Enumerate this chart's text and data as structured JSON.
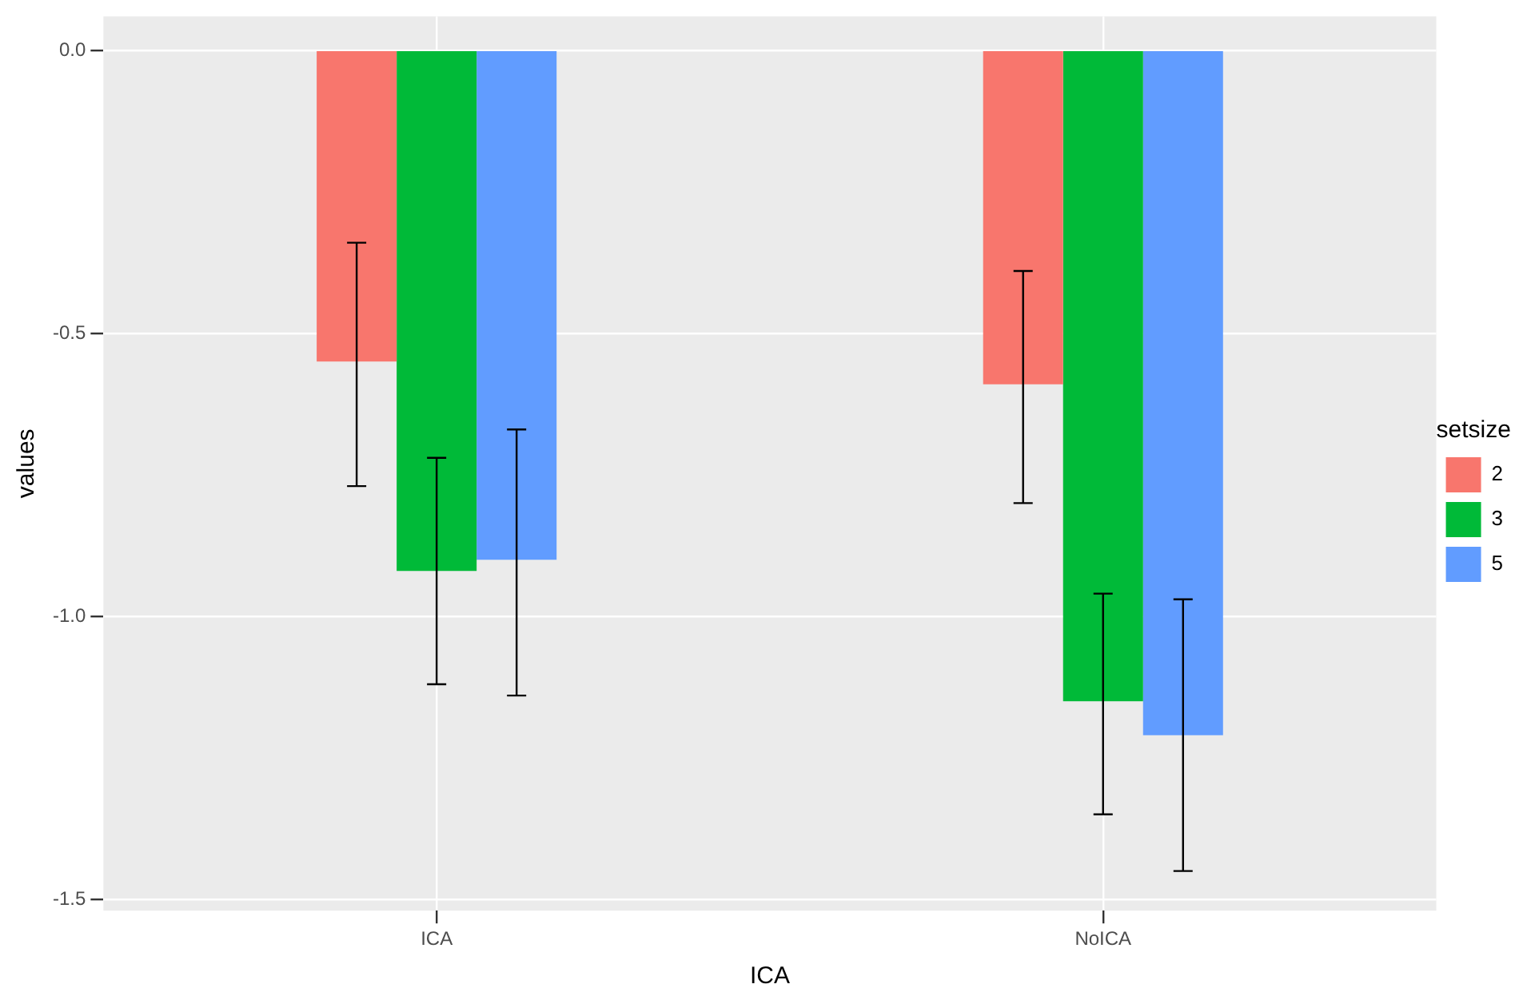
{
  "chart_data": {
    "type": "bar",
    "xlabel": "ICA",
    "ylabel": "values",
    "legend_title": "setsize",
    "categories": [
      "ICA",
      "NoICA"
    ],
    "series": [
      {
        "name": "2",
        "color": "#f8766d",
        "values": [
          -0.55,
          -0.59
        ],
        "errors": [
          [
            -0.77,
            -0.34
          ],
          [
            -0.8,
            -0.39
          ]
        ]
      },
      {
        "name": "3",
        "color": "#00ba38",
        "values": [
          -0.92,
          -1.15
        ],
        "errors": [
          [
            -1.12,
            -0.72
          ],
          [
            -1.35,
            -0.96
          ]
        ]
      },
      {
        "name": "5",
        "color": "#619cff",
        "values": [
          -0.9,
          -1.21
        ],
        "errors": [
          [
            -1.14,
            -0.67
          ],
          [
            -1.45,
            -0.97
          ]
        ]
      }
    ],
    "ylim": [
      -1.52,
      0.06
    ],
    "yticks": [
      {
        "value": 0,
        "label": "0.0"
      },
      {
        "value": -0.5,
        "label": "-0.5"
      },
      {
        "value": -1,
        "label": "-1.0"
      },
      {
        "value": -1.5,
        "label": "-1.5"
      }
    ],
    "grid": true,
    "legend": "right"
  }
}
